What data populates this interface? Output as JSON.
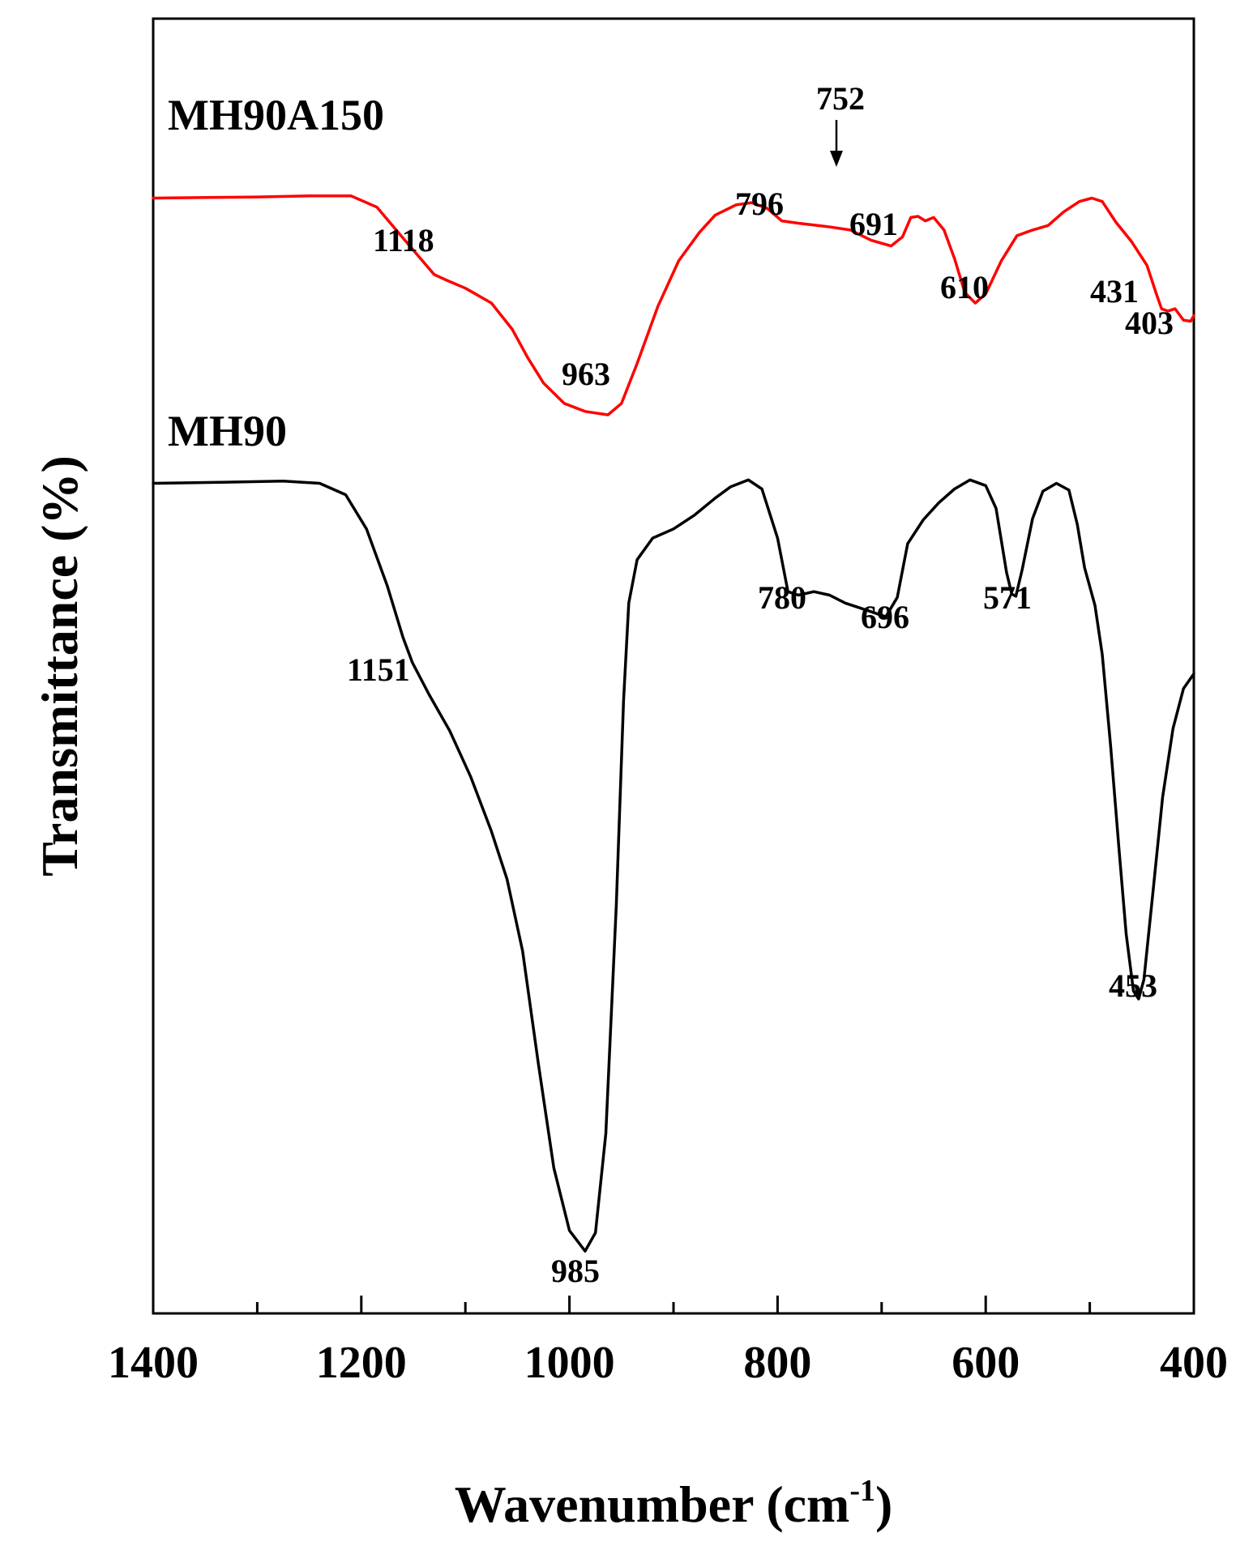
{
  "chart_data": {
    "type": "line",
    "title": "",
    "xlabel": "Wavenumber (cm",
    "xlabel_superscript": "-1",
    "xlabel_suffix": ")",
    "ylabel": "Transmittance (%)",
    "xlim": [
      1400,
      400
    ],
    "x_reversed": true,
    "ylim": [
      0,
      100
    ],
    "y_ticks_shown": false,
    "grid": false,
    "x_ticks": [
      1400,
      1200,
      1000,
      800,
      600,
      400
    ],
    "series": [
      {
        "name": "MH90A150",
        "color": "#ff0000",
        "points": [
          [
            1400,
            94.0
          ],
          [
            1300,
            94.1
          ],
          [
            1250,
            94.2
          ],
          [
            1210,
            94.2
          ],
          [
            1185,
            93.2
          ],
          [
            1160,
            90.5
          ],
          [
            1130,
            87.3
          ],
          [
            1118,
            86.8
          ],
          [
            1100,
            86.1
          ],
          [
            1075,
            84.8
          ],
          [
            1055,
            82.5
          ],
          [
            1040,
            80.0
          ],
          [
            1025,
            77.8
          ],
          [
            1005,
            76.0
          ],
          [
            985,
            75.3
          ],
          [
            963,
            75.0
          ],
          [
            950,
            76.0
          ],
          [
            935,
            79.5
          ],
          [
            915,
            84.5
          ],
          [
            895,
            88.5
          ],
          [
            875,
            91.0
          ],
          [
            860,
            92.5
          ],
          [
            840,
            93.4
          ],
          [
            825,
            93.6
          ],
          [
            810,
            93.1
          ],
          [
            796,
            92.0
          ],
          [
            780,
            91.8
          ],
          [
            752,
            91.5
          ],
          [
            730,
            91.2
          ],
          [
            710,
            90.3
          ],
          [
            691,
            89.8
          ],
          [
            680,
            90.6
          ],
          [
            672,
            92.3
          ],
          [
            665,
            92.4
          ],
          [
            658,
            92.0
          ],
          [
            650,
            92.3
          ],
          [
            640,
            91.2
          ],
          [
            630,
            88.7
          ],
          [
            620,
            85.7
          ],
          [
            610,
            84.8
          ],
          [
            600,
            85.6
          ],
          [
            585,
            88.5
          ],
          [
            570,
            90.7
          ],
          [
            555,
            91.2
          ],
          [
            540,
            91.6
          ],
          [
            525,
            92.8
          ],
          [
            510,
            93.7
          ],
          [
            498,
            94.0
          ],
          [
            488,
            93.7
          ],
          [
            475,
            91.9
          ],
          [
            460,
            90.2
          ],
          [
            445,
            88.1
          ],
          [
            436,
            85.6
          ],
          [
            431,
            84.3
          ],
          [
            425,
            84.1
          ],
          [
            418,
            84.3
          ],
          [
            410,
            83.3
          ],
          [
            403,
            83.2
          ],
          [
            400,
            83.7
          ]
        ]
      },
      {
        "name": "MH90",
        "color": "#000000",
        "points": [
          [
            1400,
            69.0
          ],
          [
            1330,
            69.1
          ],
          [
            1275,
            69.2
          ],
          [
            1240,
            69.0
          ],
          [
            1215,
            68.0
          ],
          [
            1195,
            65.0
          ],
          [
            1175,
            60.0
          ],
          [
            1160,
            55.5
          ],
          [
            1151,
            53.3
          ],
          [
            1135,
            50.5
          ],
          [
            1115,
            47.3
          ],
          [
            1095,
            43.3
          ],
          [
            1075,
            38.5
          ],
          [
            1060,
            34.3
          ],
          [
            1045,
            28.0
          ],
          [
            1030,
            18.2
          ],
          [
            1015,
            9.0
          ],
          [
            1000,
            3.5
          ],
          [
            985,
            1.7
          ],
          [
            975,
            3.3
          ],
          [
            965,
            12.0
          ],
          [
            955,
            32.0
          ],
          [
            948,
            50.0
          ],
          [
            943,
            58.5
          ],
          [
            935,
            62.3
          ],
          [
            920,
            64.2
          ],
          [
            900,
            65.0
          ],
          [
            880,
            66.2
          ],
          [
            860,
            67.7
          ],
          [
            845,
            68.7
          ],
          [
            828,
            69.3
          ],
          [
            815,
            68.5
          ],
          [
            800,
            64.2
          ],
          [
            790,
            59.5
          ],
          [
            780,
            59.2
          ],
          [
            765,
            59.5
          ],
          [
            750,
            59.2
          ],
          [
            735,
            58.5
          ],
          [
            715,
            57.9
          ],
          [
            696,
            57.3
          ],
          [
            685,
            59.0
          ],
          [
            675,
            63.7
          ],
          [
            660,
            65.8
          ],
          [
            645,
            67.3
          ],
          [
            630,
            68.5
          ],
          [
            615,
            69.3
          ],
          [
            600,
            68.8
          ],
          [
            590,
            66.8
          ],
          [
            580,
            61.2
          ],
          [
            575,
            59.3
          ],
          [
            571,
            59.1
          ],
          [
            565,
            61.4
          ],
          [
            555,
            65.9
          ],
          [
            545,
            68.3
          ],
          [
            532,
            69.0
          ],
          [
            520,
            68.4
          ],
          [
            512,
            65.4
          ],
          [
            505,
            61.6
          ],
          [
            495,
            58.3
          ],
          [
            488,
            54.0
          ],
          [
            480,
            46.0
          ],
          [
            472,
            37.0
          ],
          [
            465,
            29.5
          ],
          [
            458,
            24.5
          ],
          [
            453,
            23.8
          ],
          [
            448,
            25.5
          ],
          [
            440,
            32.5
          ],
          [
            430,
            41.5
          ],
          [
            420,
            47.5
          ],
          [
            410,
            51.0
          ],
          [
            400,
            52.3
          ]
        ]
      }
    ],
    "series_labels": [
      "MH90A150",
      "MH90"
    ],
    "peak_labels": [
      {
        "text": "1118",
        "series": "MH90A150",
        "x": 1118
      },
      {
        "text": "963",
        "series": "MH90A150",
        "x": 963
      },
      {
        "text": "796",
        "series": "MH90A150",
        "x": 796
      },
      {
        "text": "752",
        "series": "MH90A150",
        "x": 752
      },
      {
        "text": "691",
        "series": "MH90A150",
        "x": 691
      },
      {
        "text": "610",
        "series": "MH90A150",
        "x": 610
      },
      {
        "text": "431",
        "series": "MH90A150",
        "x": 431
      },
      {
        "text": "403",
        "series": "MH90A150",
        "x": 403
      },
      {
        "text": "1151",
        "series": "MH90",
        "x": 1151
      },
      {
        "text": "985",
        "series": "MH90",
        "x": 985
      },
      {
        "text": "780",
        "series": "MH90",
        "x": 780
      },
      {
        "text": "696",
        "series": "MH90",
        "x": 696
      },
      {
        "text": "571",
        "series": "MH90",
        "x": 571
      },
      {
        "text": "453",
        "series": "MH90",
        "x": 453
      }
    ]
  }
}
